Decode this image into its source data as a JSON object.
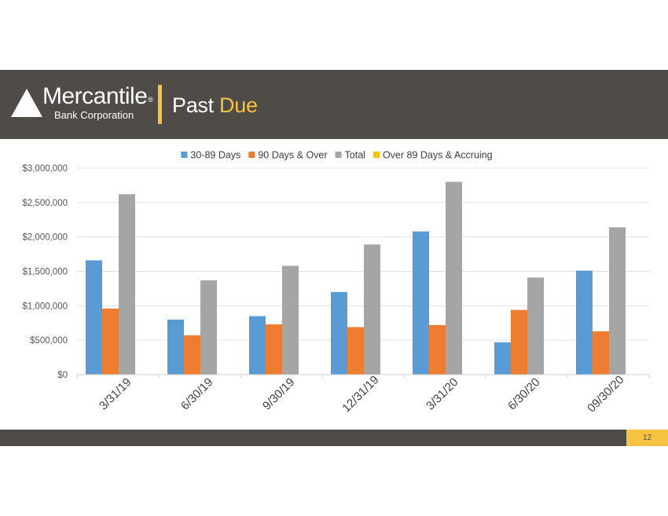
{
  "brand": {
    "name": "Mercantile",
    "registered": "®",
    "sub": "Bank Corporation"
  },
  "slide": {
    "title_main": "Past",
    "title_accent": "Due",
    "page_number": "12"
  },
  "colors": {
    "header_bg": "#4f4c47",
    "accent": "#f5c242"
  },
  "chart_data": {
    "type": "bar",
    "title": "",
    "xlabel": "",
    "ylabel": "",
    "categories": [
      "3/31/19",
      "6/30/19",
      "9/30/19",
      "12/31/19",
      "3/31/20",
      "6/30/20",
      "09/30/20"
    ],
    "series": [
      {
        "name": "30-89 Days",
        "color": "#5b9bd5",
        "values": [
          1660000,
          800000,
          850000,
          1200000,
          2080000,
          470000,
          1510000
        ]
      },
      {
        "name": "90 Days & Over",
        "color": "#ed7d31",
        "values": [
          960000,
          570000,
          730000,
          690000,
          720000,
          940000,
          630000
        ]
      },
      {
        "name": "Total",
        "color": "#a5a5a5",
        "values": [
          2620000,
          1370000,
          1580000,
          1890000,
          2800000,
          1410000,
          2140000
        ]
      },
      {
        "name": "Over 89 Days & Accruing",
        "color": "#ffc000",
        "values": [
          0,
          0,
          0,
          0,
          0,
          0,
          0
        ]
      }
    ],
    "ylim": [
      0,
      3000000
    ],
    "yticks": [
      0,
      500000,
      1000000,
      1500000,
      2000000,
      2500000,
      3000000
    ],
    "ytick_labels": [
      "$0",
      "$500,000",
      "$1,000,000",
      "$1,500,000",
      "$2,000,000",
      "$2,500,000",
      "$3,000,000"
    ],
    "grid": true,
    "legend": "top-center"
  }
}
